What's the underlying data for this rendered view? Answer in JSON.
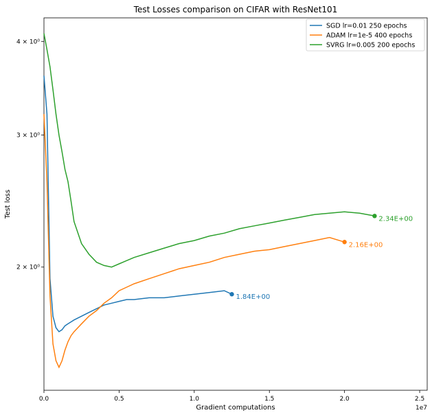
{
  "chart_data": {
    "type": "line",
    "title": "Test Losses comparison on CIFAR with ResNet101",
    "xlabel": "Gradient computations",
    "ylabel": "Test loss",
    "x_offset_label": "1e7",
    "xscale": "linear",
    "yscale": "log",
    "xlim": [
      0,
      25500000
    ],
    "ylim": [
      1.37,
      4.3
    ],
    "xticks": [
      {
        "value": 0,
        "label": "0.0"
      },
      {
        "value": 5000000,
        "label": "0.5"
      },
      {
        "value": 10000000,
        "label": "1.0"
      },
      {
        "value": 15000000,
        "label": "1.5"
      },
      {
        "value": 20000000,
        "label": "2.0"
      },
      {
        "value": 25000000,
        "label": "2.5"
      }
    ],
    "yticks": [
      {
        "value": 2,
        "label": "2 × 10⁰"
      },
      {
        "value": 3,
        "label": "3 × 10⁰"
      },
      {
        "value": 4,
        "label": "4 × 10⁰"
      }
    ],
    "grid": false,
    "legend_position": "top-right",
    "series": [
      {
        "name": "SGD lr=0.01 250 epochs",
        "color": "#1f77b4",
        "end_label": "1.84E+00",
        "final": {
          "x": 12500000,
          "y": 1.84
        },
        "points": [
          [
            0,
            3.6
          ],
          [
            200000,
            3.2
          ],
          [
            400000,
            1.93
          ],
          [
            600000,
            1.72
          ],
          [
            800000,
            1.66
          ],
          [
            1000000,
            1.64
          ],
          [
            1200000,
            1.65
          ],
          [
            1400000,
            1.67
          ],
          [
            1600000,
            1.68
          ],
          [
            1800000,
            1.69
          ],
          [
            2000000,
            1.7
          ],
          [
            2500000,
            1.72
          ],
          [
            3000000,
            1.74
          ],
          [
            3500000,
            1.76
          ],
          [
            4000000,
            1.78
          ],
          [
            4500000,
            1.79
          ],
          [
            5000000,
            1.8
          ],
          [
            5500000,
            1.81
          ],
          [
            6000000,
            1.81
          ],
          [
            7000000,
            1.82
          ],
          [
            8000000,
            1.82
          ],
          [
            9000000,
            1.83
          ],
          [
            10000000,
            1.84
          ],
          [
            11000000,
            1.85
          ],
          [
            12000000,
            1.86
          ],
          [
            12500000,
            1.84
          ]
        ]
      },
      {
        "name": "ADAM lr=1e-5 400 epochs",
        "color": "#ff7f0e",
        "end_label": "2.16E+00",
        "final": {
          "x": 20000000,
          "y": 2.16
        },
        "points": [
          [
            0,
            3.2
          ],
          [
            200000,
            2.6
          ],
          [
            400000,
            1.83
          ],
          [
            600000,
            1.58
          ],
          [
            800000,
            1.5
          ],
          [
            1000000,
            1.47
          ],
          [
            1200000,
            1.5
          ],
          [
            1400000,
            1.55
          ],
          [
            1600000,
            1.59
          ],
          [
            1800000,
            1.62
          ],
          [
            2000000,
            1.64
          ],
          [
            2500000,
            1.68
          ],
          [
            3000000,
            1.72
          ],
          [
            3500000,
            1.75
          ],
          [
            4000000,
            1.79
          ],
          [
            4500000,
            1.82
          ],
          [
            5000000,
            1.86
          ],
          [
            5500000,
            1.88
          ],
          [
            6000000,
            1.9
          ],
          [
            7000000,
            1.93
          ],
          [
            8000000,
            1.96
          ],
          [
            9000000,
            1.99
          ],
          [
            10000000,
            2.01
          ],
          [
            11000000,
            2.03
          ],
          [
            12000000,
            2.06
          ],
          [
            13000000,
            2.08
          ],
          [
            14000000,
            2.1
          ],
          [
            15000000,
            2.11
          ],
          [
            16000000,
            2.13
          ],
          [
            17000000,
            2.15
          ],
          [
            18000000,
            2.17
          ],
          [
            19000000,
            2.19
          ],
          [
            20000000,
            2.16
          ]
        ]
      },
      {
        "name": "SVRG lr=0.005 200 epochs",
        "color": "#2ca02c",
        "end_label": "2.34E+00",
        "final": {
          "x": 22000000,
          "y": 2.34
        },
        "points": [
          [
            0,
            4.1
          ],
          [
            200000,
            3.9
          ],
          [
            400000,
            3.7
          ],
          [
            600000,
            3.45
          ],
          [
            800000,
            3.2
          ],
          [
            1000000,
            3.0
          ],
          [
            1200000,
            2.85
          ],
          [
            1400000,
            2.7
          ],
          [
            1600000,
            2.6
          ],
          [
            1800000,
            2.45
          ],
          [
            2000000,
            2.3
          ],
          [
            2500000,
            2.15
          ],
          [
            3000000,
            2.08
          ],
          [
            3500000,
            2.03
          ],
          [
            4000000,
            2.01
          ],
          [
            4500000,
            2.0
          ],
          [
            5000000,
            2.02
          ],
          [
            5500000,
            2.04
          ],
          [
            6000000,
            2.06
          ],
          [
            7000000,
            2.09
          ],
          [
            8000000,
            2.12
          ],
          [
            9000000,
            2.15
          ],
          [
            10000000,
            2.17
          ],
          [
            11000000,
            2.2
          ],
          [
            12000000,
            2.22
          ],
          [
            13000000,
            2.25
          ],
          [
            14000000,
            2.27
          ],
          [
            15000000,
            2.29
          ],
          [
            16000000,
            2.31
          ],
          [
            17000000,
            2.33
          ],
          [
            18000000,
            2.35
          ],
          [
            19000000,
            2.36
          ],
          [
            20000000,
            2.37
          ],
          [
            21000000,
            2.36
          ],
          [
            22000000,
            2.34
          ]
        ]
      }
    ]
  }
}
